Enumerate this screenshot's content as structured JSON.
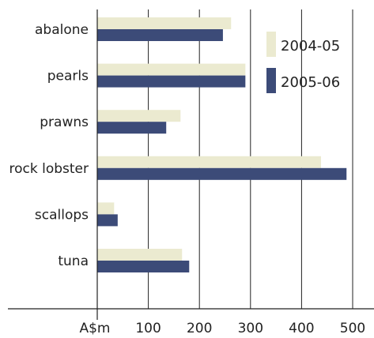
{
  "chart_data": {
    "type": "bar",
    "orientation": "horizontal",
    "categories": [
      "abalone",
      "pearls",
      "prawns",
      "rock lobster",
      "scallops",
      "tuna"
    ],
    "series": [
      {
        "name": "2004-05",
        "color": "#ebead0",
        "values": [
          262,
          290,
          163,
          438,
          33,
          166
        ]
      },
      {
        "name": "2005-06",
        "color": "#3c4b78",
        "values": [
          246,
          290,
          135,
          488,
          40,
          180
        ]
      }
    ],
    "xlim": [
      0,
      500
    ],
    "xticks": [
      100,
      200,
      300,
      400,
      500
    ],
    "xunit": "A$m",
    "grid": true,
    "legend": "top-right"
  }
}
